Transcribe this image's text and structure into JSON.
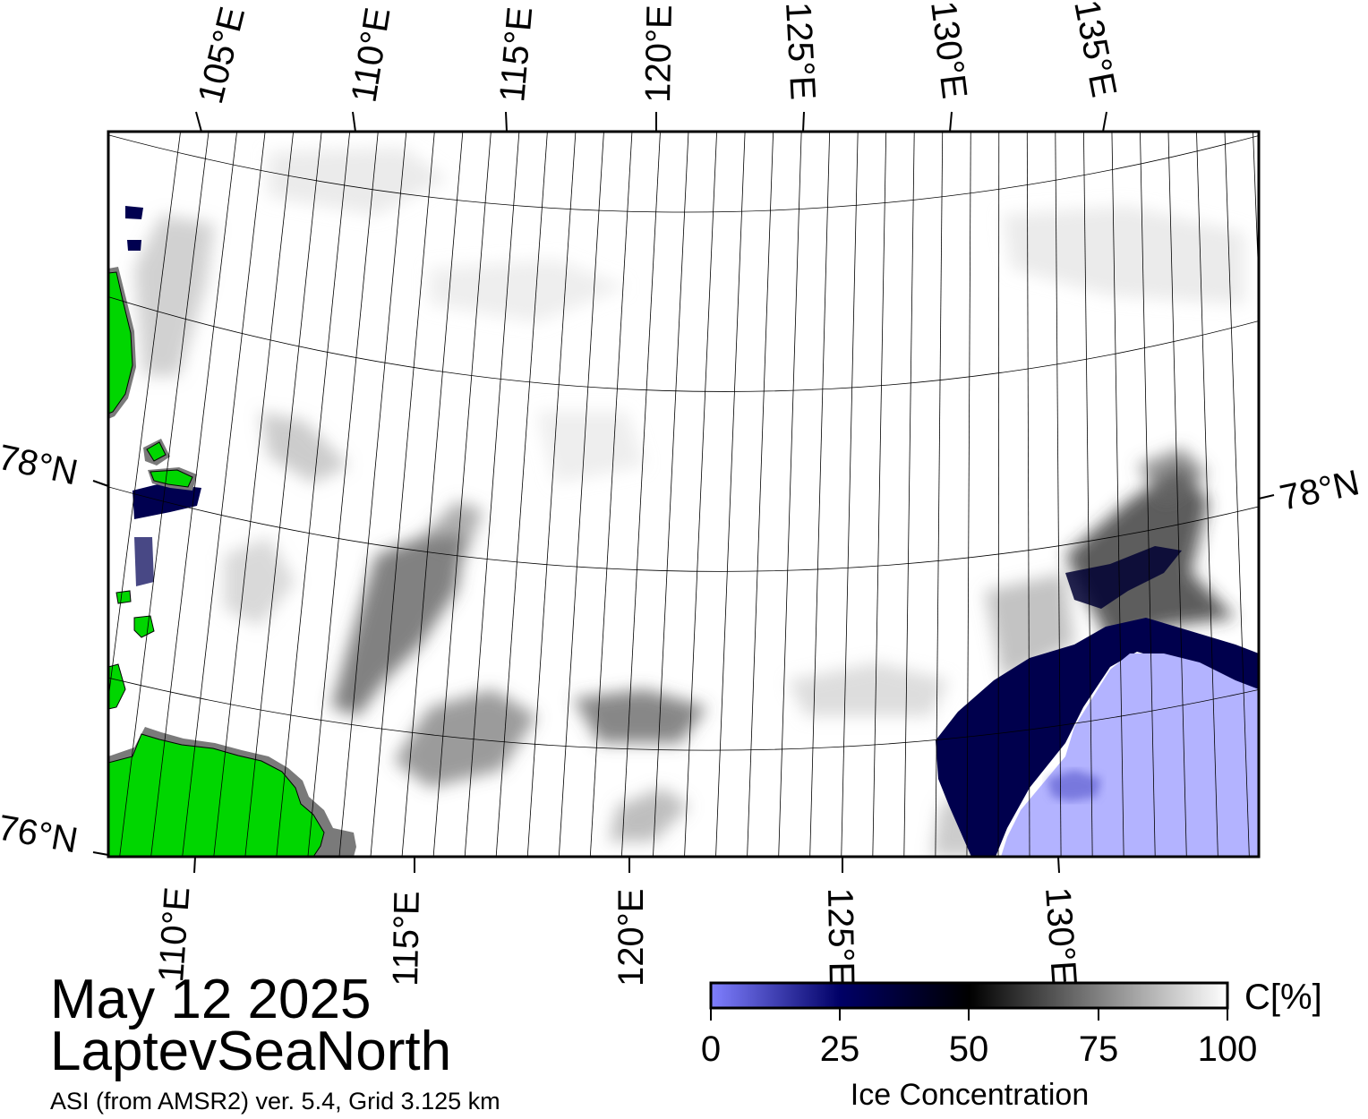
{
  "map": {
    "region": "LaptevSeaNorth",
    "date": "May 12 2025",
    "source": "ASI (from AMSR2) ver. 5.4,  Grid 3.125 km",
    "top_lon_labels": [
      "105°E",
      "110°E",
      "115°E",
      "120°E",
      "125°E",
      "130°E",
      "135°E"
    ],
    "bottom_lon_labels": [
      "110°E",
      "115°E",
      "120°E",
      "125°E",
      "130°E"
    ],
    "left_lat_labels": [
      "78°N",
      "76°N"
    ],
    "right_lat_labels": [
      "78°N"
    ],
    "colors": {
      "land": "#00d600",
      "land_shadow": "#7a7a7a",
      "open_water": "#b3b3ff",
      "frame": "#000000"
    }
  },
  "colorbar": {
    "ticks": [
      "0",
      "25",
      "50",
      "75",
      "100"
    ],
    "unit": "C[%]",
    "label": "Ice Concentration",
    "stops": [
      "#8080ff",
      "#000066",
      "#000000",
      "#808080",
      "#ffffff"
    ]
  }
}
